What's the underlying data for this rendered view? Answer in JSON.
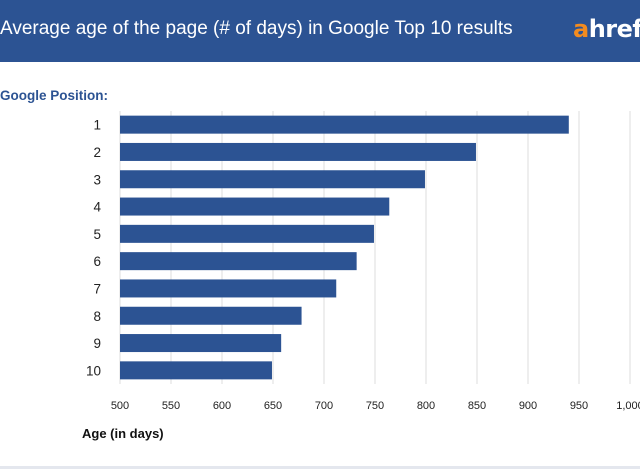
{
  "header": {
    "title": "Average age of the page (# of days) in Google Top 10 results",
    "logo_a": "a",
    "logo_rest": "hrefs",
    "background": "#2c5393",
    "logo_accent": "#f28b1f"
  },
  "chart_data": {
    "type": "bar",
    "orientation": "horizontal",
    "title": "Average age of the page (# of days) in Google Top 10 results",
    "ylabel": "Google Position:",
    "xlabel": "Age (in days)",
    "categories": [
      "1",
      "2",
      "3",
      "4",
      "5",
      "6",
      "7",
      "8",
      "9",
      "10"
    ],
    "values": [
      940,
      849,
      799,
      764,
      749,
      732,
      712,
      678,
      658,
      649
    ],
    "xlim": [
      500,
      1000
    ],
    "xticks": [
      "500",
      "550",
      "600",
      "650",
      "700",
      "750",
      "800",
      "850",
      "900",
      "950",
      "1,000"
    ],
    "grid": true,
    "bar_color": "#2c5393"
  }
}
